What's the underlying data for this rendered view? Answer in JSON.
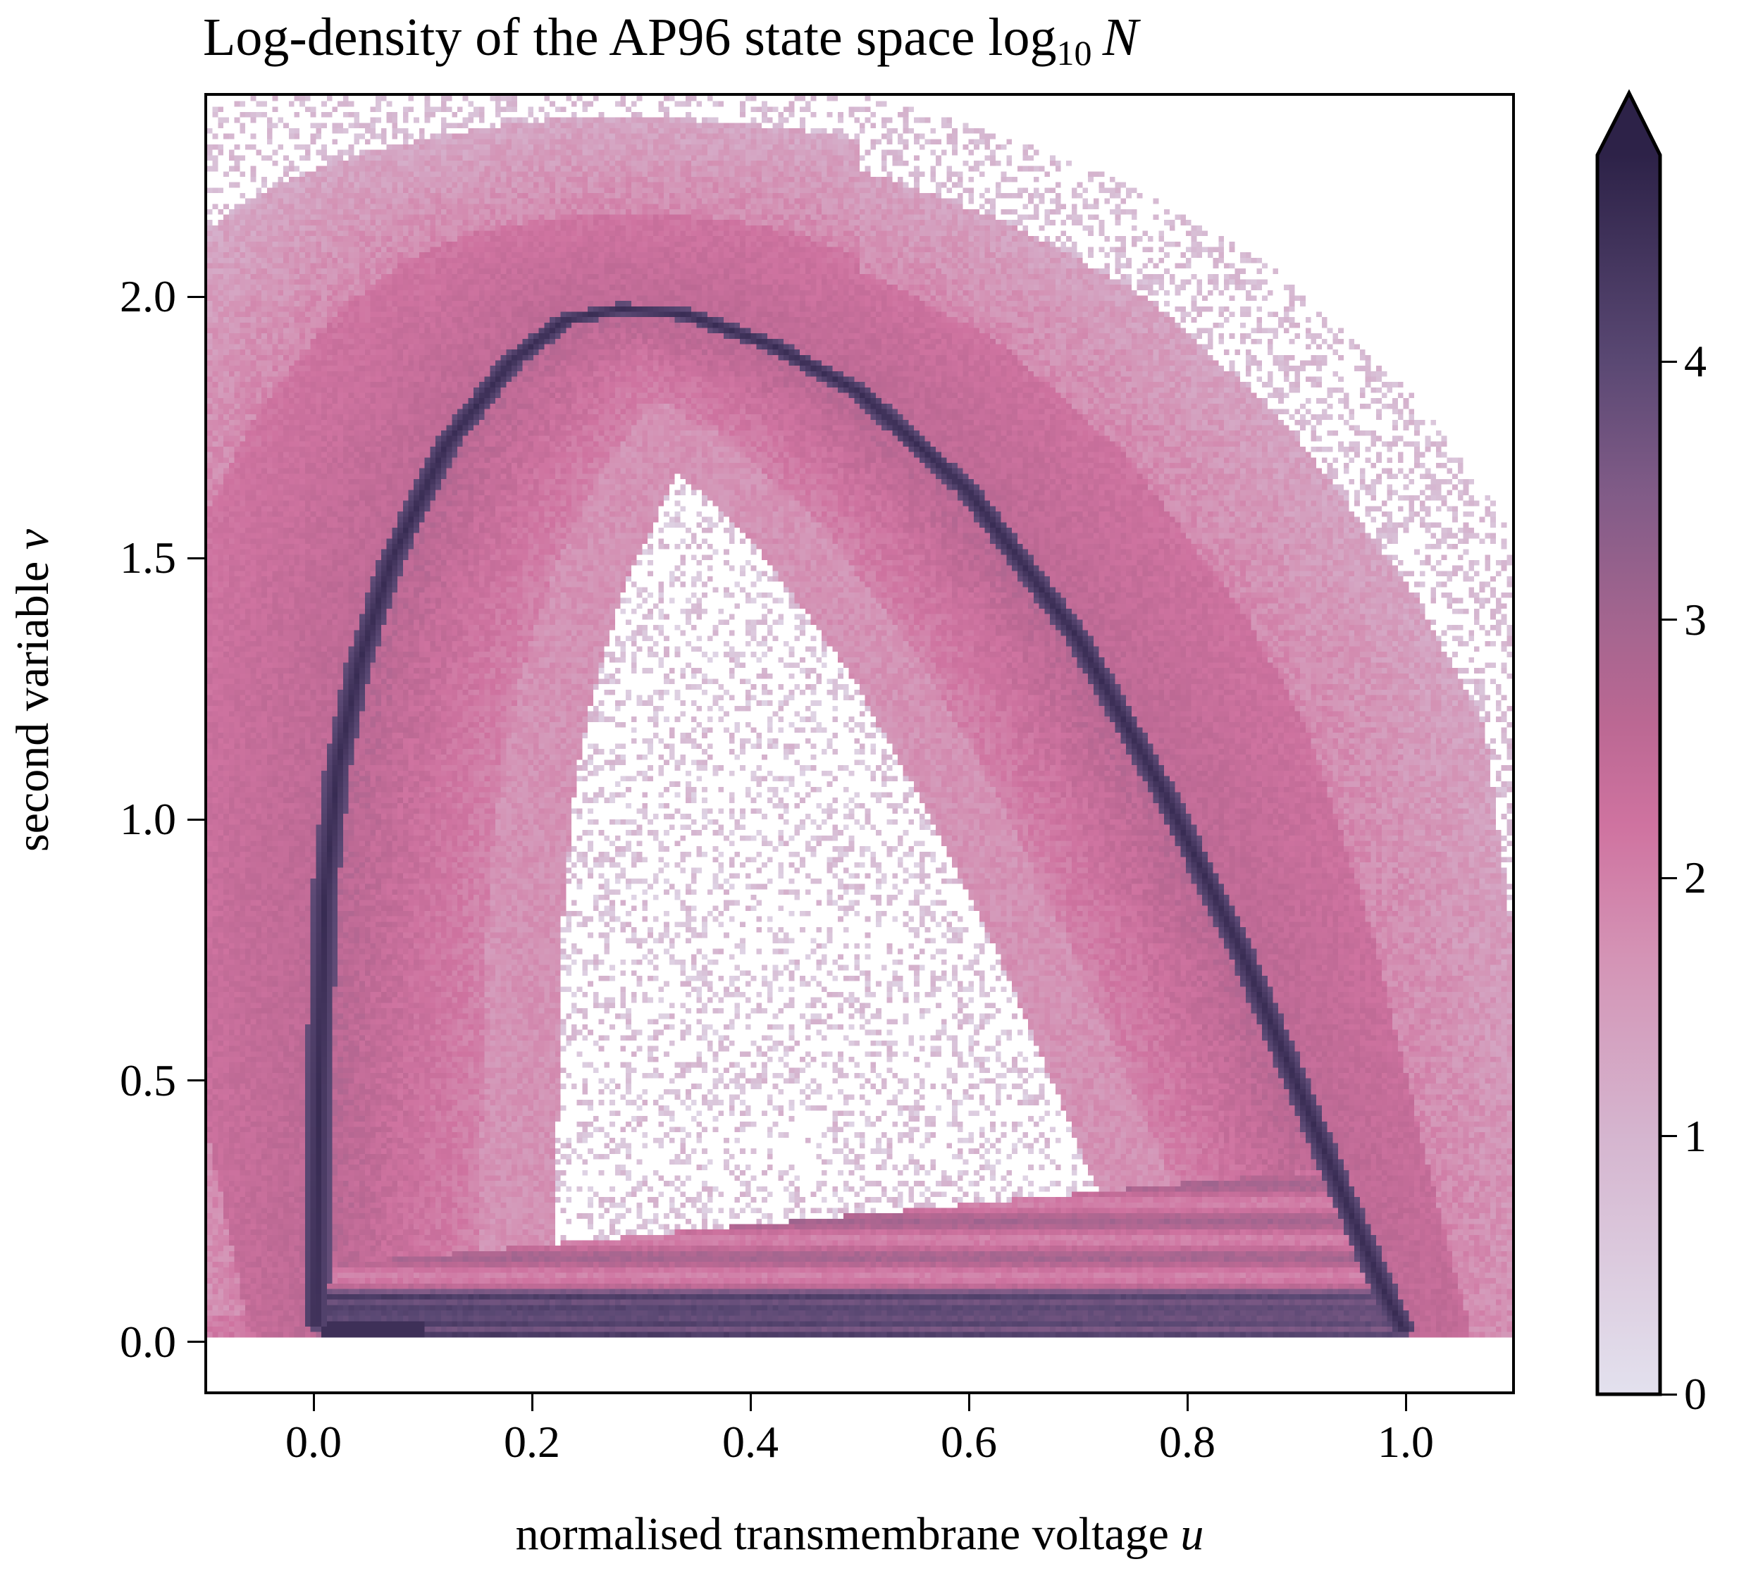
{
  "chart_data": {
    "type": "heatmap",
    "title": "Log-density of the AP96 state space log",
    "title_subscript": "10",
    "title_variable": "N",
    "xlabel": "normalised transmembrane voltage",
    "xlabel_variable": "u",
    "ylabel": "second variable",
    "ylabel_variable": "v",
    "xlim": [
      -0.1,
      1.1
    ],
    "ylim": [
      -0.1,
      2.39
    ],
    "xticks": [
      "0.0",
      "0.2",
      "0.4",
      "0.6",
      "0.8",
      "1.0"
    ],
    "xtick_values": [
      0.0,
      0.2,
      0.4,
      0.6,
      0.8,
      1.0
    ],
    "yticks": [
      "0.0",
      "0.5",
      "1.0",
      "1.5",
      "2.0"
    ],
    "ytick_values": [
      0.0,
      0.5,
      1.0,
      1.5,
      2.0
    ],
    "grid": false,
    "colorbar": {
      "range": [
        0,
        4.8
      ],
      "extend": "max",
      "ticks": [
        "0",
        "1",
        "2",
        "3",
        "4"
      ],
      "tick_values": [
        0,
        1,
        2,
        3,
        4
      ],
      "colormap": [
        {
          "value": 0.0,
          "color": "#e3e1ee"
        },
        {
          "value": 1.0,
          "color": "#d5b5cf"
        },
        {
          "value": 1.7,
          "color": "#d493b5"
        },
        {
          "value": 2.2,
          "color": "#cf73a0"
        },
        {
          "value": 2.6,
          "color": "#bb6893"
        },
        {
          "value": 3.0,
          "color": "#a3658f"
        },
        {
          "value": 3.5,
          "color": "#805b87"
        },
        {
          "value": 4.0,
          "color": "#5a4873"
        },
        {
          "value": 4.8,
          "color": "#2d2248"
        }
      ]
    },
    "limit_cycle": [
      [
        0.0,
        0.03
      ],
      [
        0.003,
        0.5
      ],
      [
        0.008,
        0.85
      ],
      [
        0.02,
        1.1
      ],
      [
        0.04,
        1.3
      ],
      [
        0.07,
        1.5
      ],
      [
        0.12,
        1.72
      ],
      [
        0.18,
        1.88
      ],
      [
        0.23,
        1.96
      ],
      [
        0.28,
        1.98
      ],
      [
        0.34,
        1.97
      ],
      [
        0.42,
        1.91
      ],
      [
        0.5,
        1.82
      ],
      [
        0.6,
        1.63
      ],
      [
        0.7,
        1.35
      ],
      [
        0.78,
        1.05
      ],
      [
        0.85,
        0.75
      ],
      [
        0.9,
        0.5
      ],
      [
        0.95,
        0.25
      ],
      [
        0.985,
        0.08
      ],
      [
        1.0,
        0.02
      ]
    ]
  }
}
